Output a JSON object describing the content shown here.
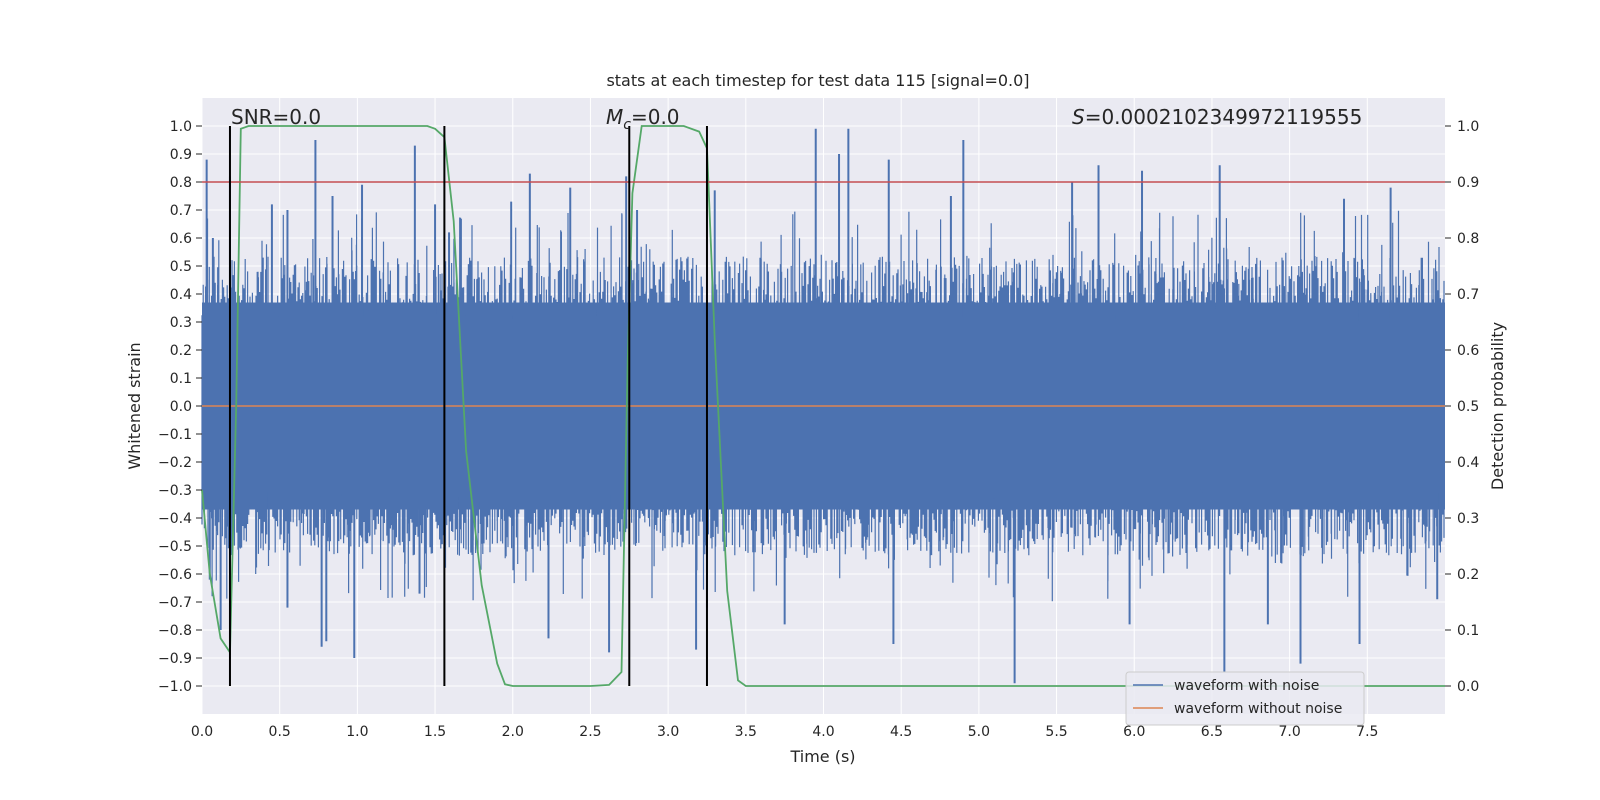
{
  "chart_data": {
    "type": "line",
    "title": "stats at each timestep for test data 115 [signal=0.0]",
    "xlabel": "Time (s)",
    "ylabel_left": "Whitened strain",
    "ylabel_right": "Detection probability",
    "xlim": [
      0.0,
      8.0
    ],
    "ylim_left": [
      -1.1,
      1.1
    ],
    "ylim_right": [
      -0.05,
      1.05
    ],
    "x_ticks": [
      "0.0",
      "0.5",
      "1.0",
      "1.5",
      "2.0",
      "2.5",
      "3.0",
      "3.5",
      "4.0",
      "4.5",
      "5.0",
      "5.5",
      "6.0",
      "6.5",
      "7.0",
      "7.5"
    ],
    "y_ticks_left": [
      "1.0",
      "0.9",
      "0.8",
      "0.7",
      "0.6",
      "0.5",
      "0.4",
      "0.3",
      "0.2",
      "0.1",
      "0.0",
      "−0.1",
      "−0.2",
      "−0.3",
      "−0.4",
      "−0.5",
      "−0.6",
      "−0.7",
      "−0.8",
      "−0.9",
      "−1.0"
    ],
    "y_ticks_right": [
      "1.0",
      "0.9",
      "0.8",
      "0.7",
      "0.6",
      "0.5",
      "0.4",
      "0.3",
      "0.2",
      "0.1",
      "0.0"
    ],
    "grid": true,
    "legend_position": "bottom-right",
    "legend": [
      "waveform with noise",
      "waveform without noise"
    ],
    "annotations": {
      "snr": "SNR=0.0",
      "mc_symbol": "M",
      "mc_sub": "c",
      "mc_value": "=0.0",
      "s_symbol": "S",
      "s_value": "=0.0002102349972119555"
    },
    "threshold": {
      "axis": "right",
      "value": 0.9,
      "color": "#c44e52"
    },
    "vertical_lines_x": [
      0.18,
      1.56,
      2.75,
      3.25
    ],
    "series": [
      {
        "name": "waveform with noise",
        "axis": "left",
        "color": "#4c72b0",
        "kind": "noise",
        "envelope": [
          0.42,
          -0.42
        ],
        "peaks_top": [
          [
            0.03,
            0.88
          ],
          [
            0.07,
            0.6
          ],
          [
            0.18,
            0.82
          ],
          [
            0.45,
            0.72
          ],
          [
            0.55,
            0.7
          ],
          [
            0.73,
            0.95
          ],
          [
            0.84,
            0.75
          ],
          [
            1.03,
            0.79
          ],
          [
            1.37,
            0.93
          ],
          [
            1.5,
            0.72
          ],
          [
            1.59,
            0.62
          ],
          [
            1.99,
            0.73
          ],
          [
            2.11,
            0.83
          ],
          [
            2.37,
            0.78
          ],
          [
            2.73,
            0.82
          ],
          [
            2.8,
            0.7
          ],
          [
            3.3,
            0.77
          ],
          [
            3.95,
            0.99
          ],
          [
            4.1,
            0.9
          ],
          [
            4.16,
            0.99
          ],
          [
            4.42,
            0.88
          ],
          [
            4.82,
            0.75
          ],
          [
            4.9,
            0.95
          ],
          [
            5.6,
            0.8
          ],
          [
            5.77,
            0.86
          ],
          [
            6.05,
            0.84
          ],
          [
            6.55,
            0.86
          ],
          [
            7.35,
            0.74
          ],
          [
            7.65,
            0.78
          ]
        ],
        "peaks_bottom": [
          [
            0.05,
            -0.62
          ],
          [
            0.12,
            -0.8
          ],
          [
            0.55,
            -0.72
          ],
          [
            0.77,
            -0.86
          ],
          [
            0.8,
            -0.84
          ],
          [
            0.98,
            -0.9
          ],
          [
            1.4,
            -0.67
          ],
          [
            2.23,
            -0.83
          ],
          [
            2.62,
            -0.88
          ],
          [
            3.18,
            -0.87
          ],
          [
            3.25,
            -0.72
          ],
          [
            3.75,
            -0.78
          ],
          [
            4.45,
            -0.85
          ],
          [
            5.23,
            -0.99
          ],
          [
            5.97,
            -0.78
          ],
          [
            6.58,
            -0.95
          ],
          [
            6.86,
            -0.78
          ],
          [
            7.07,
            -0.92
          ],
          [
            7.45,
            -0.85
          ],
          [
            7.95,
            -0.69
          ]
        ]
      },
      {
        "name": "waveform without noise",
        "axis": "left",
        "color": "#dd8452",
        "x": [
          0.0,
          8.0
        ],
        "y": [
          0.0,
          0.0
        ]
      },
      {
        "name": "detection probability",
        "axis": "right",
        "color": "#55a868",
        "x": [
          0.0,
          0.05,
          0.12,
          0.18,
          0.22,
          0.25,
          0.3,
          0.5,
          1.0,
          1.45,
          1.5,
          1.56,
          1.62,
          1.7,
          1.8,
          1.9,
          1.95,
          2.0,
          2.5,
          2.62,
          2.7,
          2.74,
          2.77,
          2.83,
          2.9,
          3.1,
          3.2,
          3.25,
          3.3,
          3.38,
          3.45,
          3.5,
          4.0,
          8.0
        ],
        "y": [
          0.35,
          0.2,
          0.085,
          0.06,
          0.5,
          0.995,
          1.0,
          1.0,
          1.0,
          1.0,
          0.995,
          0.98,
          0.83,
          0.42,
          0.18,
          0.04,
          0.003,
          0.0,
          0.0,
          0.002,
          0.025,
          0.58,
          0.88,
          1.0,
          1.0,
          1.0,
          0.99,
          0.96,
          0.62,
          0.17,
          0.01,
          0.0,
          0.0,
          0.0
        ]
      }
    ]
  }
}
